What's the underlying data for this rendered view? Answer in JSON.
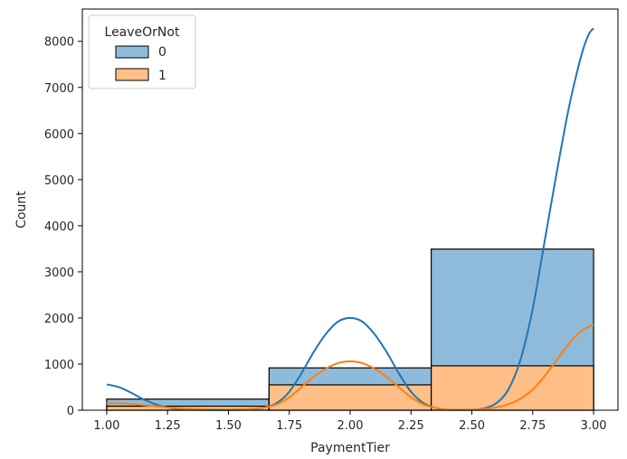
{
  "chart_data": {
    "type": "histogram",
    "stacking": "stacked",
    "kde": true,
    "xlabel": "PaymentTier",
    "ylabel": "Count",
    "xlim": [
      0.9,
      3.1
    ],
    "ylim": [
      0,
      8700
    ],
    "xticks": [
      1.0,
      1.25,
      1.5,
      1.75,
      2.0,
      2.25,
      2.5,
      2.75,
      3.0
    ],
    "xtick_labels": [
      "1.00",
      "1.25",
      "1.50",
      "1.75",
      "2.00",
      "2.25",
      "2.50",
      "2.75",
      "3.00"
    ],
    "yticks": [
      0,
      1000,
      2000,
      3000,
      4000,
      5000,
      6000,
      7000,
      8000
    ],
    "ytick_labels": [
      "0",
      "1000",
      "2000",
      "3000",
      "4000",
      "5000",
      "6000",
      "7000",
      "8000"
    ],
    "bins": [
      [
        1.0,
        1.667
      ],
      [
        1.667,
        2.333
      ],
      [
        2.333,
        3.0
      ]
    ],
    "legend": {
      "title": "LeaveOrNot",
      "location": "upper left"
    },
    "colors": {
      "0": "#1f77b4",
      "1": "#ff7f0e"
    },
    "series": [
      {
        "name": "0",
        "counts": [
          154,
          368,
          2531
        ],
        "total_heights": [
          241,
          918,
          3494
        ]
      },
      {
        "name": "1",
        "counts": [
          87,
          550,
          963
        ]
      }
    ],
    "kde_curves": [
      {
        "name": "0",
        "x": [
          1.0,
          1.05,
          1.1,
          1.15,
          1.2,
          1.25,
          1.3,
          1.4,
          1.5,
          1.6,
          1.65,
          1.7,
          1.75,
          1.8,
          1.85,
          1.9,
          1.95,
          2.0,
          2.05,
          2.1,
          2.15,
          2.2,
          2.25,
          2.3,
          2.35,
          2.4,
          2.5,
          2.55,
          2.6,
          2.65,
          2.7,
          2.75,
          2.8,
          2.85,
          2.9,
          2.95,
          2.98,
          3.0
        ],
        "y": [
          560,
          500,
          380,
          240,
          130,
          60,
          20,
          5,
          3,
          20,
          60,
          160,
          400,
          800,
          1260,
          1650,
          1920,
          2000,
          1920,
          1650,
          1260,
          800,
          400,
          160,
          50,
          10,
          10,
          40,
          150,
          450,
          1100,
          2200,
          3700,
          5200,
          6600,
          7700,
          8150,
          8280
        ]
      },
      {
        "name": "1",
        "x": [
          1.0,
          1.05,
          1.1,
          1.15,
          1.2,
          1.25,
          1.3,
          1.4,
          1.5,
          1.6,
          1.65,
          1.7,
          1.75,
          1.8,
          1.85,
          1.9,
          1.95,
          2.0,
          2.05,
          2.1,
          2.15,
          2.2,
          2.25,
          2.3,
          2.35,
          2.4,
          2.5,
          2.55,
          2.6,
          2.65,
          2.7,
          2.75,
          2.8,
          2.85,
          2.9,
          2.95,
          3.0
        ],
        "y": [
          150,
          150,
          135,
          110,
          85,
          60,
          40,
          20,
          15,
          30,
          60,
          130,
          280,
          500,
          720,
          900,
          1020,
          1060,
          1020,
          900,
          720,
          500,
          280,
          130,
          50,
          15,
          12,
          25,
          60,
          130,
          250,
          450,
          750,
          1100,
          1450,
          1720,
          1860
        ]
      }
    ]
  }
}
